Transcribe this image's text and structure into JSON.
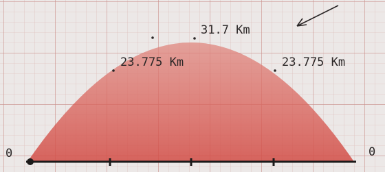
{
  "annotations": {
    "peak": "31.7 Km",
    "left": "23.775 Km",
    "right": "23.775 Km"
  },
  "axis": {
    "start": "0",
    "end": "0"
  }
}
